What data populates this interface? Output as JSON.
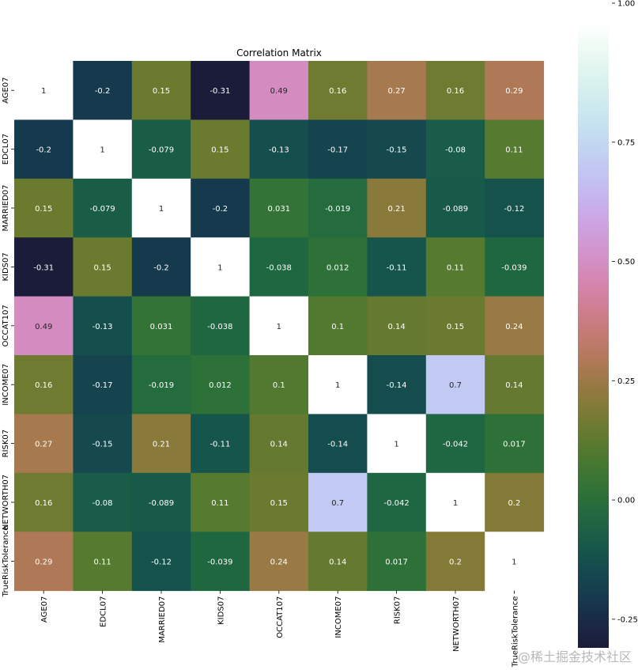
{
  "chart_data": {
    "type": "heatmap",
    "title": "Correlation Matrix",
    "labels": [
      "AGE07",
      "EDCL07",
      "MARRIED07",
      "KIDS07",
      "OCCAT107",
      "INCOME07",
      "RISK07",
      "NETWORTH07",
      "TrueRiskTolerance"
    ],
    "matrix": [
      [
        1,
        -0.2,
        0.15,
        -0.31,
        0.49,
        0.16,
        0.27,
        0.16,
        0.29
      ],
      [
        -0.2,
        1,
        -0.079,
        0.15,
        -0.13,
        -0.17,
        -0.15,
        -0.08,
        0.11
      ],
      [
        0.15,
        -0.079,
        1,
        -0.2,
        0.031,
        -0.019,
        0.21,
        -0.089,
        -0.12
      ],
      [
        -0.31,
        0.15,
        -0.2,
        1,
        -0.038,
        0.012,
        -0.11,
        0.11,
        -0.039
      ],
      [
        0.49,
        -0.13,
        0.031,
        -0.038,
        1,
        0.1,
        0.14,
        0.15,
        0.24
      ],
      [
        0.16,
        -0.17,
        -0.019,
        0.012,
        0.1,
        1,
        -0.14,
        0.7,
        0.14
      ],
      [
        0.27,
        -0.15,
        0.21,
        -0.11,
        0.14,
        -0.14,
        1,
        -0.042,
        0.017
      ],
      [
        0.16,
        -0.08,
        -0.089,
        0.11,
        0.15,
        0.7,
        -0.042,
        1,
        0.2
      ],
      [
        0.29,
        0.11,
        -0.12,
        -0.039,
        0.24,
        0.14,
        0.017,
        0.2,
        1
      ]
    ],
    "vmin": -0.31,
    "vmax": 1.0,
    "colormap": "cubehelix",
    "colorbar": {
      "ticks": [
        1.0,
        0.75,
        0.5,
        0.25,
        0.0,
        -0.25
      ],
      "tick_labels": [
        "1.00",
        "0.75",
        "0.50",
        "0.25",
        "0.00",
        "-0.25"
      ]
    }
  },
  "watermark": "@稀土掘金技术社区"
}
